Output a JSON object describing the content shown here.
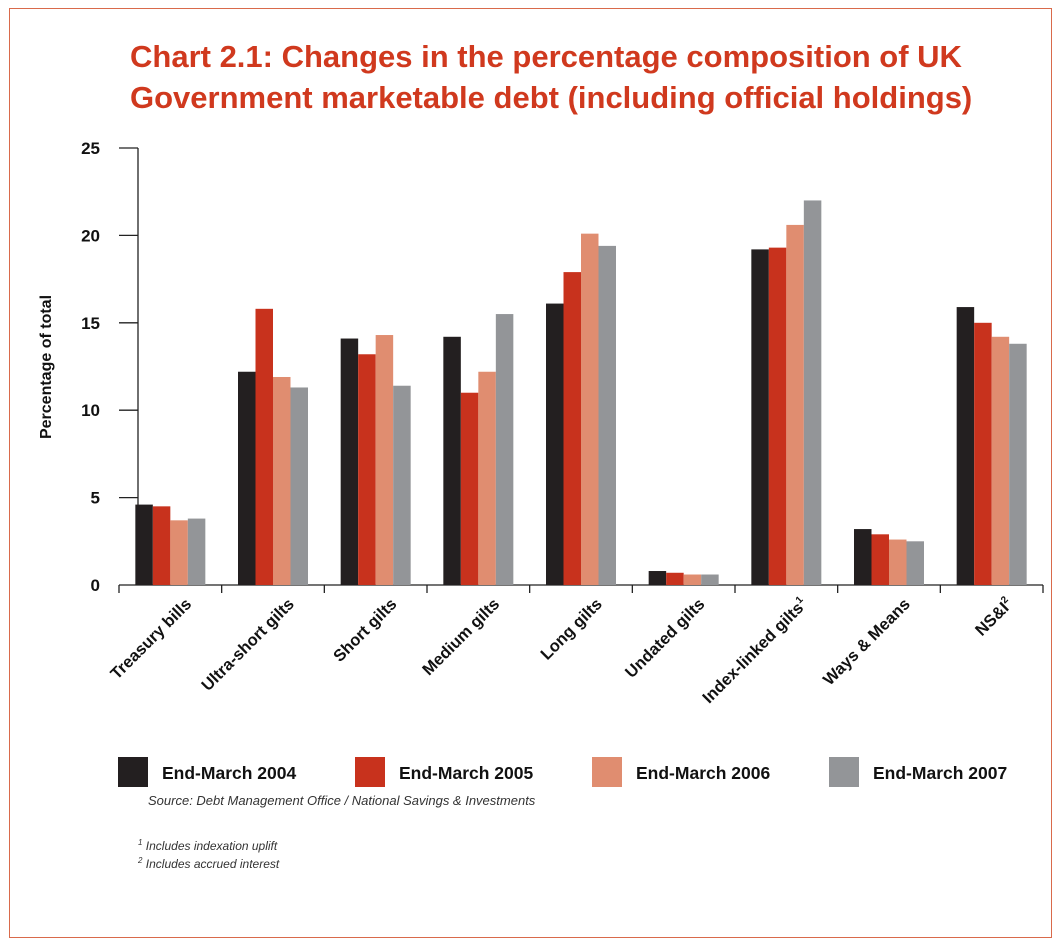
{
  "chart_data": {
    "type": "bar",
    "title_lines": [
      "Chart 2.1: Changes in the percentage composition of UK",
      "Government marketable debt (including official holdings)"
    ],
    "xlabel": "",
    "ylabel": "Percentage of total",
    "ylim": [
      0,
      25
    ],
    "yticks": [
      "0",
      "5",
      "10",
      "15",
      "20",
      "25"
    ],
    "grid": false,
    "legend_position": "bottom",
    "categories": [
      "Treasury bills",
      "Ultra-short gilts",
      "Short gilts",
      "Medium gilts",
      "Long gilts",
      "Undated gilts",
      "Index-linked gilts",
      "Ways & Means",
      "NS&I"
    ],
    "category_superscripts": [
      "",
      "",
      "",
      "",
      "",
      "",
      "1",
      "",
      "2"
    ],
    "series": [
      {
        "name": "End-March 2004",
        "color": "#231f20",
        "values": [
          4.6,
          12.2,
          14.1,
          14.2,
          16.1,
          0.8,
          19.2,
          3.2,
          15.9
        ]
      },
      {
        "name": "End-March 2005",
        "color": "#c8321d",
        "values": [
          4.5,
          15.8,
          13.2,
          11.0,
          17.9,
          0.7,
          19.3,
          2.9,
          15.0
        ]
      },
      {
        "name": "End-March 2006",
        "color": "#e08d70",
        "values": [
          3.7,
          11.9,
          14.3,
          12.2,
          20.1,
          0.6,
          20.6,
          2.6,
          14.2
        ]
      },
      {
        "name": "End-March 2007",
        "color": "#939598",
        "values": [
          3.8,
          11.3,
          11.4,
          15.5,
          19.4,
          0.6,
          22.0,
          2.5,
          13.8
        ]
      }
    ]
  },
  "source": "Source: Debt Management Office / National Savings & Investments",
  "footnotes": [
    {
      "marker": "1",
      "text": "Includes indexation uplift"
    },
    {
      "marker": "2",
      "text": "Includes accrued interest"
    }
  ]
}
